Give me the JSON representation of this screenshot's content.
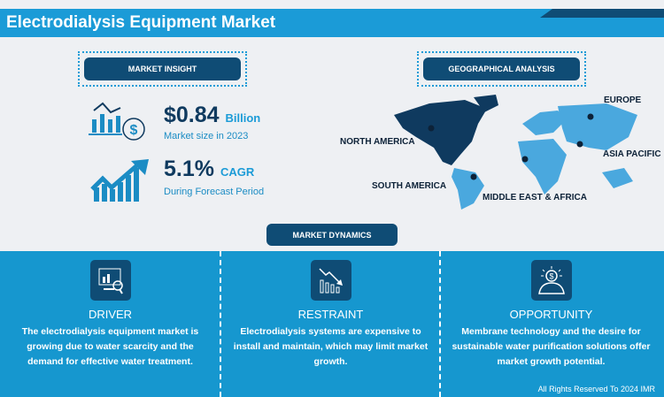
{
  "header": {
    "title": "Electrodialysis Equipment Market"
  },
  "insight": {
    "label": "MARKET INSIGHT",
    "market_value": "$0.84",
    "market_unit": "Billion",
    "market_caption": "Market size in 2023",
    "cagr_value": "5.1%",
    "cagr_unit": "CAGR",
    "cagr_caption": "During Forecast Period"
  },
  "geo": {
    "label": "GEOGRAPHICAL ANALYSIS",
    "regions": [
      "NORTH AMERICA",
      "EUROPE",
      "ASIA PACIFIC",
      "SOUTH AMERICA",
      "MIDDLE EAST & AFRICA"
    ],
    "highlight_color": "#0f3a5f",
    "region_color": "#4aa8de"
  },
  "dynamics": {
    "label": "MARKET DYNAMICS",
    "items": [
      {
        "title": "DRIVER",
        "icon": "analytics-monitor-icon",
        "text": "The electrodialysis equipment market is growing due to water scarcity and the demand for effective water treatment."
      },
      {
        "title": "RESTRAINT",
        "icon": "declining-chart-icon",
        "text": "Electrodialysis systems are expensive to install and maintain, which may limit market growth."
      },
      {
        "title": "OPPORTUNITY",
        "icon": "lightbulb-dollar-icon",
        "text": "Membrane technology and the desire for sustainable water purification solutions offer market growth potential."
      }
    ]
  },
  "footer": {
    "copyright": "All Rights Reserved To 2024 IMR"
  }
}
